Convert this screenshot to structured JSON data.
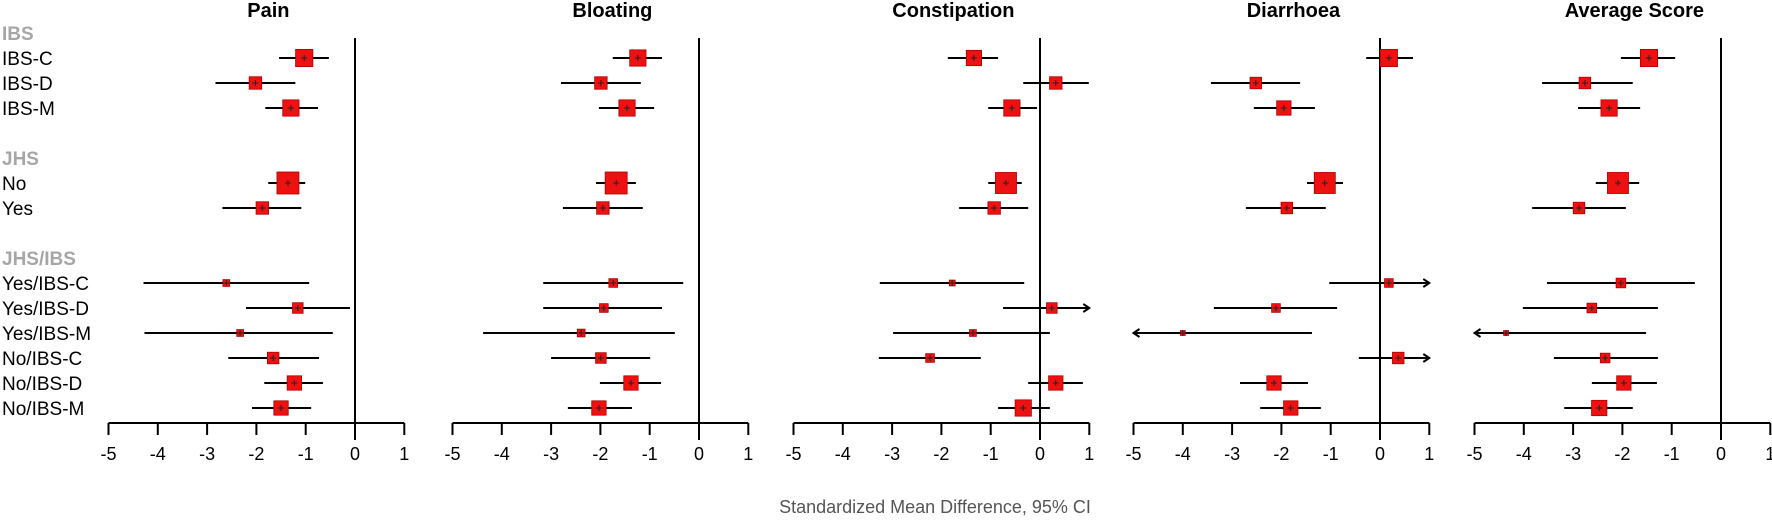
{
  "chart_data": {
    "type": "forest",
    "xlabel": "Standardized Mean Difference, 95% CI",
    "xlim": [
      -5,
      1
    ],
    "xticks": [
      -5,
      -4,
      -3,
      -2,
      -1,
      0,
      1
    ],
    "reference_line": 0,
    "colors": {
      "box": "#ee1111",
      "line": "#000000",
      "group_header": "#a6a6a6"
    },
    "groups": [
      {
        "header": "IBS",
        "rows": [
          "IBS-C",
          "IBS-D",
          "IBS-M"
        ]
      },
      {
        "header": "JHS",
        "rows": [
          "No",
          "Yes"
        ]
      },
      {
        "header": "JHS/IBS",
        "rows": [
          "Yes/IBS-C",
          "Yes/IBS-D",
          "Yes/IBS-M",
          "No/IBS-C",
          "No/IBS-D",
          "No/IBS-M"
        ]
      }
    ],
    "panels": [
      {
        "title": "Pain",
        "estimates": [
          {
            "row": "IBS-C",
            "smd": -1.03,
            "lower": -1.54,
            "upper": -0.53,
            "weight": 0.75
          },
          {
            "row": "IBS-D",
            "smd": -2.02,
            "lower": -2.83,
            "upper": -1.21,
            "weight": 0.5
          },
          {
            "row": "IBS-M",
            "smd": -1.3,
            "lower": -1.82,
            "upper": -0.75,
            "weight": 0.7
          },
          {
            "row": "No",
            "smd": -1.36,
            "lower": -1.76,
            "upper": -1.01,
            "weight": 1.0
          },
          {
            "row": "Yes",
            "smd": -1.88,
            "lower": -2.69,
            "upper": -1.09,
            "weight": 0.5
          },
          {
            "row": "Yes/IBS-C",
            "smd": -2.61,
            "lower": -4.29,
            "upper": -0.93,
            "weight": 0.2
          },
          {
            "row": "Yes/IBS-D",
            "smd": -1.16,
            "lower": -2.21,
            "upper": -0.1,
            "weight": 0.4
          },
          {
            "row": "Yes/IBS-M",
            "smd": -2.33,
            "lower": -4.27,
            "upper": -0.45,
            "weight": 0.2
          },
          {
            "row": "No/IBS-C",
            "smd": -1.66,
            "lower": -2.57,
            "upper": -0.73,
            "weight": 0.45
          },
          {
            "row": "No/IBS-D",
            "smd": -1.23,
            "lower": -1.84,
            "upper": -0.65,
            "weight": 0.6
          },
          {
            "row": "No/IBS-M",
            "smd": -1.5,
            "lower": -2.09,
            "upper": -0.89,
            "weight": 0.6
          }
        ]
      },
      {
        "title": "Bloating",
        "estimates": [
          {
            "row": "IBS-C",
            "smd": -1.24,
            "lower": -1.75,
            "upper": -0.75,
            "weight": 0.7
          },
          {
            "row": "IBS-D",
            "smd": -1.99,
            "lower": -2.8,
            "upper": -1.18,
            "weight": 0.5
          },
          {
            "row": "IBS-M",
            "smd": -1.46,
            "lower": -2.03,
            "upper": -0.91,
            "weight": 0.7
          },
          {
            "row": "No",
            "smd": -1.68,
            "lower": -2.09,
            "upper": -1.28,
            "weight": 1.0
          },
          {
            "row": "Yes",
            "smd": -1.95,
            "lower": -2.76,
            "upper": -1.14,
            "weight": 0.5
          },
          {
            "row": "Yes/IBS-C",
            "smd": -1.74,
            "lower": -3.16,
            "upper": -0.32,
            "weight": 0.3
          },
          {
            "row": "Yes/IBS-D",
            "smd": -1.93,
            "lower": -3.16,
            "upper": -0.75,
            "weight": 0.3
          },
          {
            "row": "Yes/IBS-M",
            "smd": -2.39,
            "lower": -4.38,
            "upper": -0.49,
            "weight": 0.25
          },
          {
            "row": "No/IBS-C",
            "smd": -1.99,
            "lower": -3.0,
            "upper": -0.99,
            "weight": 0.4
          },
          {
            "row": "No/IBS-D",
            "smd": -1.38,
            "lower": -2.01,
            "upper": -0.77,
            "weight": 0.6
          },
          {
            "row": "No/IBS-M",
            "smd": -2.03,
            "lower": -2.66,
            "upper": -1.36,
            "weight": 0.6
          }
        ]
      },
      {
        "title": "Constipation",
        "estimates": [
          {
            "row": "IBS-C",
            "smd": -1.34,
            "lower": -1.87,
            "upper": -0.85,
            "weight": 0.65
          },
          {
            "row": "IBS-D",
            "smd": 0.32,
            "lower": -0.34,
            "upper": 0.99,
            "weight": 0.5
          },
          {
            "row": "IBS-M",
            "smd": -0.57,
            "lower": -1.05,
            "upper": -0.06,
            "weight": 0.7
          },
          {
            "row": "No",
            "smd": -0.69,
            "lower": -1.05,
            "upper": -0.37,
            "weight": 0.95
          },
          {
            "row": "Yes",
            "smd": -0.93,
            "lower": -1.64,
            "upper": -0.24,
            "weight": 0.5
          },
          {
            "row": "Yes/IBS-C",
            "smd": -1.78,
            "lower": -3.25,
            "upper": -0.32,
            "weight": 0.15
          },
          {
            "row": "Yes/IBS-D",
            "smd": 0.24,
            "lower": -0.75,
            "upper": 1.0,
            "upper_truncated": true,
            "weight": 0.4
          },
          {
            "row": "Yes/IBS-M",
            "smd": -1.36,
            "lower": -2.98,
            "upper": 0.2,
            "weight": 0.2
          },
          {
            "row": "No/IBS-C",
            "smd": -2.23,
            "lower": -3.27,
            "upper": -1.2,
            "weight": 0.3
          },
          {
            "row": "No/IBS-D",
            "smd": 0.32,
            "lower": -0.24,
            "upper": 0.87,
            "weight": 0.6
          },
          {
            "row": "No/IBS-M",
            "smd": -0.34,
            "lower": -0.85,
            "upper": 0.2,
            "weight": 0.7
          }
        ]
      },
      {
        "title": "Diarrhoea",
        "estimates": [
          {
            "row": "IBS-C",
            "smd": 0.18,
            "lower": -0.28,
            "upper": 0.67,
            "weight": 0.75
          },
          {
            "row": "IBS-D",
            "smd": -2.52,
            "lower": -3.43,
            "upper": -1.62,
            "weight": 0.45
          },
          {
            "row": "IBS-M",
            "smd": -1.95,
            "lower": -2.56,
            "upper": -1.32,
            "weight": 0.6
          },
          {
            "row": "No",
            "smd": -1.12,
            "lower": -1.48,
            "upper": -0.75,
            "weight": 0.95
          },
          {
            "row": "Yes",
            "smd": -1.89,
            "lower": -2.72,
            "upper": -1.1,
            "weight": 0.45
          },
          {
            "row": "Yes/IBS-C",
            "smd": 0.18,
            "lower": -1.03,
            "upper": 1.0,
            "upper_truncated": true,
            "weight": 0.3
          },
          {
            "row": "Yes/IBS-D",
            "smd": -2.11,
            "lower": -3.37,
            "upper": -0.87,
            "weight": 0.3
          },
          {
            "row": "Yes/IBS-M",
            "smd": -4.0,
            "lower": -5.0,
            "lower_truncated": true,
            "upper": -1.38,
            "weight": 0.1
          },
          {
            "row": "No/IBS-C",
            "smd": 0.37,
            "lower": -0.43,
            "upper": 1.0,
            "upper_truncated": true,
            "weight": 0.45
          },
          {
            "row": "No/IBS-D",
            "smd": -2.15,
            "lower": -2.84,
            "upper": -1.46,
            "weight": 0.6
          },
          {
            "row": "No/IBS-M",
            "smd": -1.81,
            "lower": -2.43,
            "upper": -1.2,
            "weight": 0.6
          }
        ]
      },
      {
        "title": "Average Score",
        "estimates": [
          {
            "row": "IBS-C",
            "smd": -1.46,
            "lower": -2.03,
            "upper": -0.93,
            "weight": 0.75
          },
          {
            "row": "IBS-D",
            "smd": -2.76,
            "lower": -3.63,
            "upper": -1.79,
            "weight": 0.45
          },
          {
            "row": "IBS-M",
            "smd": -2.27,
            "lower": -2.9,
            "upper": -1.64,
            "weight": 0.7
          },
          {
            "row": "No",
            "smd": -2.09,
            "lower": -2.54,
            "upper": -1.66,
            "weight": 0.95
          },
          {
            "row": "Yes",
            "smd": -2.88,
            "lower": -3.83,
            "upper": -1.93,
            "weight": 0.45
          },
          {
            "row": "Yes/IBS-C",
            "smd": -2.03,
            "lower": -3.53,
            "upper": -0.53,
            "weight": 0.35
          },
          {
            "row": "Yes/IBS-D",
            "smd": -2.62,
            "lower": -4.02,
            "upper": -1.28,
            "weight": 0.35
          },
          {
            "row": "Yes/IBS-M",
            "smd": -4.36,
            "lower": -5.0,
            "lower_truncated": true,
            "upper": -1.52,
            "weight": 0.1
          },
          {
            "row": "No/IBS-C",
            "smd": -2.35,
            "lower": -3.39,
            "upper": -1.28,
            "weight": 0.35
          },
          {
            "row": "No/IBS-D",
            "smd": -1.97,
            "lower": -2.62,
            "upper": -1.3,
            "weight": 0.6
          },
          {
            "row": "No/IBS-M",
            "smd": -2.47,
            "lower": -3.18,
            "upper": -1.79,
            "weight": 0.65
          }
        ]
      }
    ]
  }
}
